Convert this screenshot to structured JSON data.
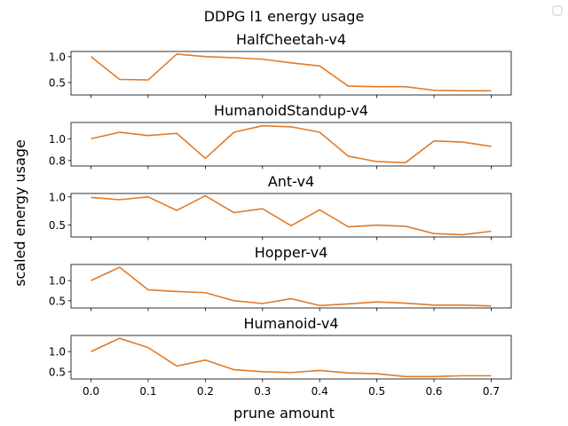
{
  "figure": {
    "suptitle": "DDPG l1 energy usage",
    "xlabel": "prune amount",
    "ylabel": "scaled energy usage",
    "legend_entries": []
  },
  "colors": {
    "series_line": "#e07b2a",
    "axes": "#000000",
    "background": "#ffffff"
  },
  "chart_data": [
    {
      "type": "line",
      "title": "HalfCheetah-v4",
      "x": [
        0.0,
        0.05,
        0.1,
        0.15,
        0.2,
        0.25,
        0.3,
        0.35,
        0.4,
        0.45,
        0.5,
        0.55,
        0.6,
        0.65,
        0.7
      ],
      "y": [
        1.0,
        0.56,
        0.55,
        1.05,
        1.0,
        0.98,
        0.95,
        0.88,
        0.82,
        0.43,
        0.42,
        0.42,
        0.35,
        0.34,
        0.34
      ],
      "xlim": [
        -0.035,
        0.735
      ],
      "ylim": [
        0.26,
        1.1
      ],
      "yticks": [
        0.5,
        1.0
      ],
      "ytick_labels": [
        "0.5",
        "1.0"
      ],
      "xticks": [
        0.0,
        0.1,
        0.2,
        0.3,
        0.4,
        0.5,
        0.6,
        0.7
      ],
      "xtick_labels": [
        "0.0",
        "0.1",
        "0.2",
        "0.3",
        "0.4",
        "0.5",
        "0.6",
        "0.7"
      ],
      "show_xtick_labels": false
    },
    {
      "type": "line",
      "title": "HumanoidStandup-v4",
      "x": [
        0.0,
        0.05,
        0.1,
        0.15,
        0.2,
        0.25,
        0.3,
        0.35,
        0.4,
        0.45,
        0.5,
        0.55,
        0.6,
        0.65,
        0.7
      ],
      "y": [
        1.0,
        1.06,
        1.03,
        1.05,
        0.82,
        1.06,
        1.12,
        1.11,
        1.06,
        0.84,
        0.79,
        0.78,
        0.98,
        0.97,
        0.93
      ],
      "xlim": [
        -0.035,
        0.735
      ],
      "ylim": [
        0.75,
        1.15
      ],
      "yticks": [
        0.8,
        1.0
      ],
      "ytick_labels": [
        "0.8",
        "1.0"
      ],
      "xticks": [
        0.0,
        0.1,
        0.2,
        0.3,
        0.4,
        0.5,
        0.6,
        0.7
      ],
      "xtick_labels": [
        "0.0",
        "0.1",
        "0.2",
        "0.3",
        "0.4",
        "0.5",
        "0.6",
        "0.7"
      ],
      "show_xtick_labels": false
    },
    {
      "type": "line",
      "title": "Ant-v4",
      "x": [
        0.0,
        0.05,
        0.1,
        0.15,
        0.2,
        0.25,
        0.3,
        0.35,
        0.4,
        0.45,
        0.5,
        0.55,
        0.6,
        0.65,
        0.7
      ],
      "y": [
        0.99,
        0.95,
        1.0,
        0.76,
        1.02,
        0.72,
        0.79,
        0.49,
        0.77,
        0.47,
        0.5,
        0.48,
        0.35,
        0.33,
        0.39
      ],
      "xlim": [
        -0.035,
        0.735
      ],
      "ylim": [
        0.29,
        1.06
      ],
      "yticks": [
        0.5,
        1.0
      ],
      "ytick_labels": [
        "0.5",
        "1.0"
      ],
      "xticks": [
        0.0,
        0.1,
        0.2,
        0.3,
        0.4,
        0.5,
        0.6,
        0.7
      ],
      "xtick_labels": [
        "0.0",
        "0.1",
        "0.2",
        "0.3",
        "0.4",
        "0.5",
        "0.6",
        "0.7"
      ],
      "show_xtick_labels": false
    },
    {
      "type": "line",
      "title": "Hopper-v4",
      "x": [
        0.0,
        0.05,
        0.1,
        0.15,
        0.2,
        0.25,
        0.3,
        0.35,
        0.4,
        0.45,
        0.5,
        0.55,
        0.6,
        0.65,
        0.7
      ],
      "y": [
        1.0,
        1.33,
        0.77,
        0.73,
        0.7,
        0.5,
        0.43,
        0.55,
        0.38,
        0.42,
        0.47,
        0.44,
        0.39,
        0.39,
        0.37
      ],
      "xlim": [
        -0.035,
        0.735
      ],
      "ylim": [
        0.32,
        1.4
      ],
      "yticks": [
        0.5,
        1.0
      ],
      "ytick_labels": [
        "0.5",
        "1.0"
      ],
      "xticks": [
        0.0,
        0.1,
        0.2,
        0.3,
        0.4,
        0.5,
        0.6,
        0.7
      ],
      "xtick_labels": [
        "0.0",
        "0.1",
        "0.2",
        "0.3",
        "0.4",
        "0.5",
        "0.6",
        "0.7"
      ],
      "show_xtick_labels": false
    },
    {
      "type": "line",
      "title": "Humanoid-v4",
      "x": [
        0.0,
        0.05,
        0.1,
        0.15,
        0.2,
        0.25,
        0.3,
        0.35,
        0.4,
        0.45,
        0.5,
        0.55,
        0.6,
        0.65,
        0.7
      ],
      "y": [
        1.0,
        1.33,
        1.1,
        0.64,
        0.79,
        0.55,
        0.5,
        0.48,
        0.53,
        0.47,
        0.45,
        0.38,
        0.38,
        0.4,
        0.4
      ],
      "xlim": [
        -0.035,
        0.735
      ],
      "ylim": [
        0.32,
        1.4
      ],
      "yticks": [
        0.5,
        1.0
      ],
      "ytick_labels": [
        "0.5",
        "1.0"
      ],
      "xticks": [
        0.0,
        0.1,
        0.2,
        0.3,
        0.4,
        0.5,
        0.6,
        0.7
      ],
      "xtick_labels": [
        "0.0",
        "0.1",
        "0.2",
        "0.3",
        "0.4",
        "0.5",
        "0.6",
        "0.7"
      ],
      "show_xtick_labels": true
    }
  ]
}
